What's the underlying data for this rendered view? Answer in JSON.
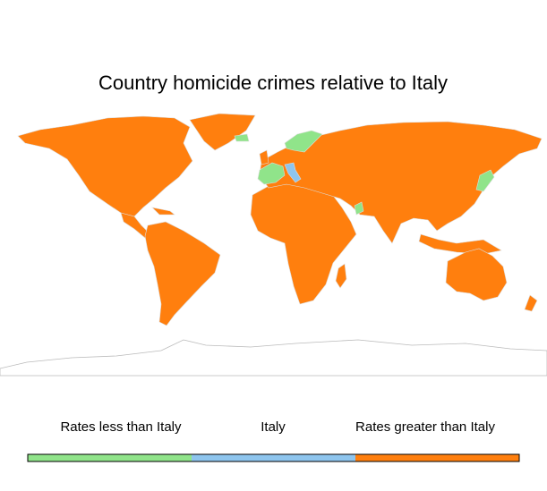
{
  "title": "Country homicide crimes relative to Italy",
  "legend": {
    "items": [
      {
        "label": "Rates less than Italy",
        "color": "#90e48a"
      },
      {
        "label": "Italy",
        "color": "#8ec5ee"
      },
      {
        "label": "Rates greater than Italy",
        "color": "#ff7f0e"
      }
    ]
  }
}
